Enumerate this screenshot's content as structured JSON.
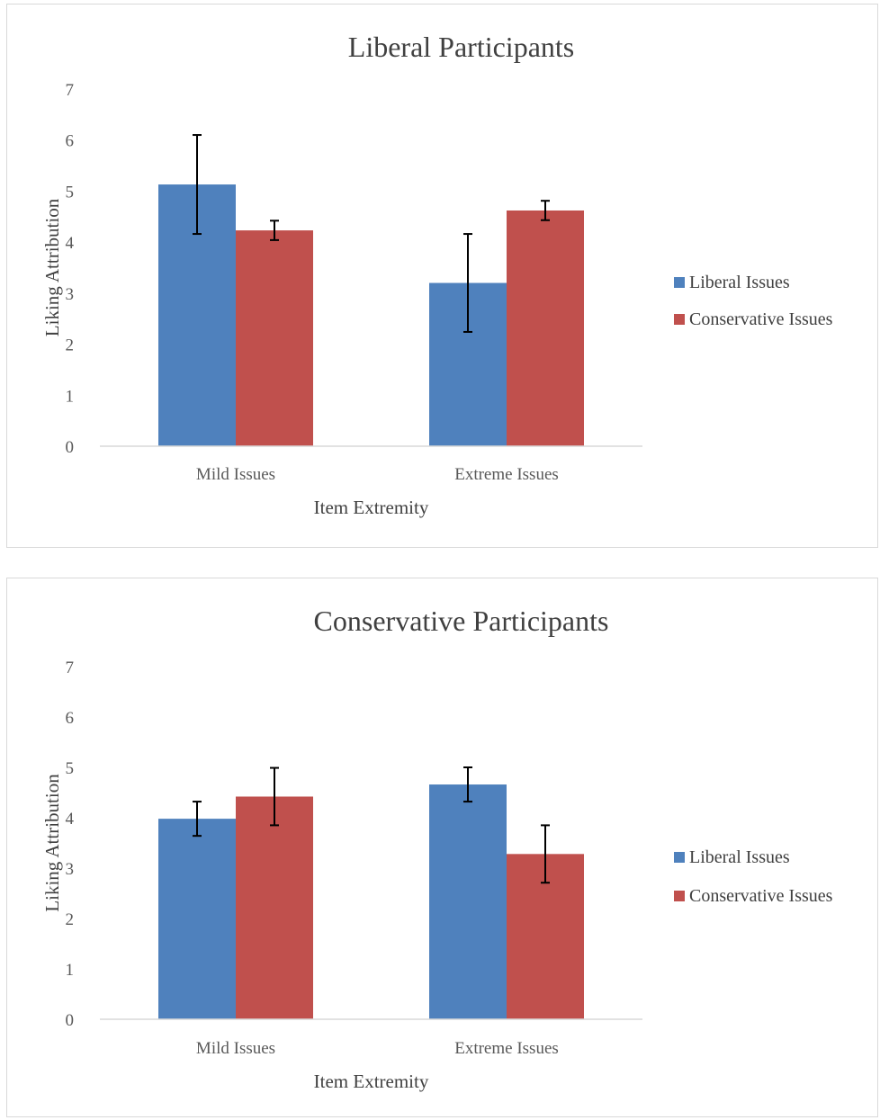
{
  "chart_data": [
    {
      "type": "bar",
      "title": "Liberal Participants",
      "xlabel": "Item Extremity",
      "ylabel": "Liking Attribution",
      "ylim": [
        0,
        7
      ],
      "yticks": [
        "0",
        "1",
        "2",
        "3",
        "4",
        "5",
        "6",
        "7"
      ],
      "categories": [
        "Mild Issues",
        "Extreme Issues"
      ],
      "series": [
        {
          "name": "Liberal Issues",
          "color": "#4f81bd",
          "values": [
            5.13,
            3.2
          ],
          "error": [
            0.97,
            0.96
          ]
        },
        {
          "name": "Conservative Issues",
          "color": "#c0504d",
          "values": [
            4.23,
            4.62
          ],
          "error": [
            0.19,
            0.19
          ]
        }
      ],
      "grid": false,
      "legend_position": "right"
    },
    {
      "type": "bar",
      "title": "Conservative Participants",
      "xlabel": "Item Extremity",
      "ylabel": "Liking Attribution",
      "ylim": [
        0,
        7
      ],
      "yticks": [
        "0",
        "1",
        "2",
        "3",
        "4",
        "5",
        "6",
        "7"
      ],
      "categories": [
        "Mild Issues",
        "Extreme Issues"
      ],
      "series": [
        {
          "name": "Liberal Issues",
          "color": "#4f81bd",
          "values": [
            3.98,
            4.66
          ],
          "error": [
            0.34,
            0.34
          ]
        },
        {
          "name": "Conservative Issues",
          "color": "#c0504d",
          "values": [
            4.42,
            3.28
          ],
          "error": [
            0.57,
            0.57
          ]
        }
      ],
      "grid": false,
      "legend_position": "right"
    }
  ]
}
